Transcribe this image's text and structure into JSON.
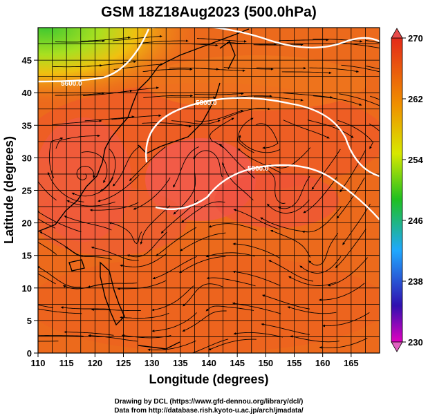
{
  "title": "GSM 18Z18Aug2023 (500.0hPa)",
  "xlabel": "Longitude (degrees)",
  "ylabel": "Latitude  (degrees)",
  "xticks": [
    "110",
    "115",
    "120",
    "125",
    "130",
    "135",
    "140",
    "145",
    "150",
    "155",
    "160",
    "165"
  ],
  "yticks": [
    "0",
    "5",
    "10",
    "15",
    "20",
    "25",
    "30",
    "35",
    "40",
    "45"
  ],
  "colorbar": {
    "ticks": [
      "230",
      "238",
      "246",
      "254",
      "262",
      "270"
    ],
    "min": 230,
    "max": 270,
    "colors": [
      "#e000c0",
      "#2020c0",
      "#20a0ff",
      "#20c020",
      "#f0e000",
      "#f08000",
      "#e02020"
    ]
  },
  "contours": [
    {
      "label": "5800.0"
    },
    {
      "label": "5900.0"
    },
    {
      "label": "5600.0"
    }
  ],
  "credits": [
    "Drawing by DCL (https://www.gfd-dennou.org/library/dcl/)",
    "Data from http://database.rish.kyoto-u.ac.jp/arch/jmadata/"
  ],
  "chart_data": {
    "type": "heatmap",
    "title": "GSM 18Z18Aug2023 (500.0hPa)",
    "xlabel": "Longitude (degrees)",
    "ylabel": "Latitude  (degrees)",
    "xlim": [
      110,
      170
    ],
    "ylim": [
      0,
      50
    ],
    "colorbar_range": [
      230,
      270
    ],
    "contour_levels": [
      5600,
      5800,
      5900
    ],
    "grid": true
  }
}
